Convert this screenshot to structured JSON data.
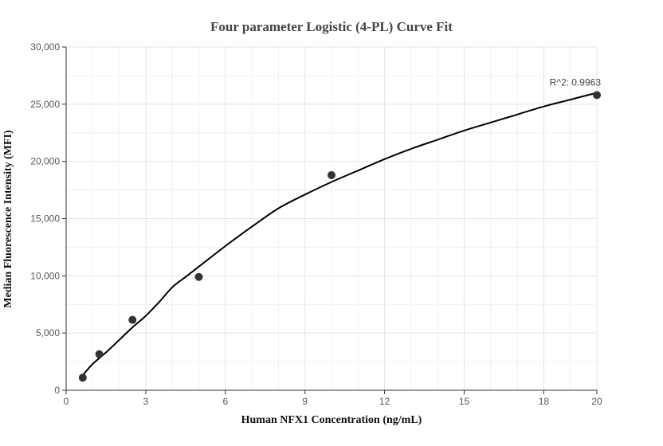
{
  "chart_data": {
    "type": "scatter",
    "title": "Four parameter Logistic (4-PL) Curve Fit",
    "xlabel": "Human NFX1 Concentration (ng/mL)",
    "ylabel": "Median Fluorescence Intensity (MFI)",
    "xlim": [
      0,
      20
    ],
    "ylim": [
      0,
      30000
    ],
    "x_ticks": [
      0,
      3,
      6,
      9,
      12,
      15,
      18,
      20
    ],
    "y_ticks": [
      0,
      5000,
      10000,
      15000,
      20000,
      25000,
      30000
    ],
    "y_tick_labels": [
      "0",
      "5,000",
      "10,000",
      "15,000",
      "20,000",
      "25,000",
      "30,000"
    ],
    "grid": true,
    "series": [
      {
        "type": "scatter",
        "color": "#333333",
        "x": [
          0.625,
          1.25,
          2.5,
          5,
          10,
          20
        ],
        "y": [
          1100,
          3150,
          6150,
          9900,
          18800,
          25800
        ]
      },
      {
        "type": "line",
        "color": "#000000",
        "x": [
          0.625,
          1,
          1.5,
          2,
          2.5,
          3,
          3.5,
          4,
          4.5,
          5,
          6,
          7,
          8,
          9,
          10,
          11,
          12,
          13,
          14,
          15,
          16,
          17,
          18,
          19,
          20
        ],
        "y": [
          1300,
          2300,
          3300,
          4400,
          5500,
          6500,
          7700,
          9000,
          9900,
          10800,
          12600,
          14300,
          15900,
          17100,
          18200,
          19200,
          20200,
          21100,
          21900,
          22700,
          23400,
          24100,
          24800,
          25400,
          26000
        ]
      }
    ],
    "annotations": [
      {
        "text": "R^2: 0.9963",
        "x": 20,
        "y": 25800
      }
    ]
  }
}
